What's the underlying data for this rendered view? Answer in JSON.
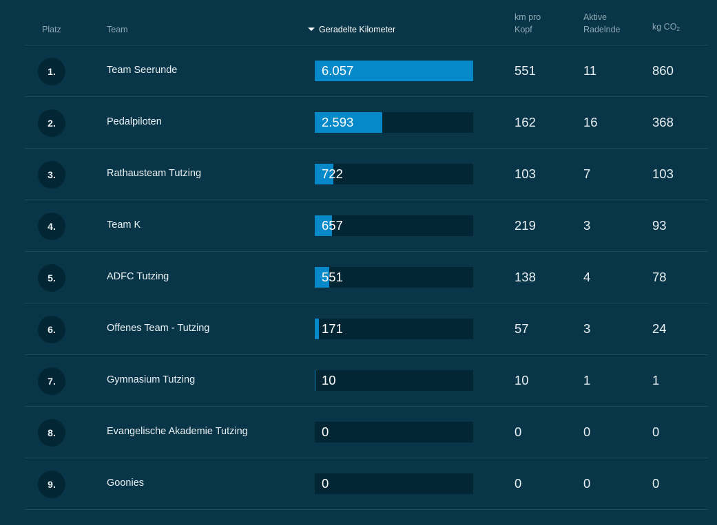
{
  "header": {
    "rank": "Platz",
    "team": "Team",
    "km": "Geradelte Kilometer",
    "km_per_head_line1": "km pro",
    "km_per_head_line2": "Kopf",
    "active_line1": "Aktive",
    "active_line2": "Radelnde",
    "co2_prefix": "kg CO",
    "co2_sub": "2",
    "sort_icon": "triangle-down"
  },
  "colors": {
    "background": "#083547",
    "bar_track": "#032634",
    "bar_fill": "#0589c9",
    "rank_circle": "#032634"
  },
  "rows": [
    {
      "rank": "1.",
      "team": "Team Seerunde",
      "km": "6.057",
      "km_value": 6057,
      "km_per_head": "551",
      "active": "11",
      "co2": "860"
    },
    {
      "rank": "2.",
      "team": "Pedalpiloten",
      "km": "2.593",
      "km_value": 2593,
      "km_per_head": "162",
      "active": "16",
      "co2": "368"
    },
    {
      "rank": "3.",
      "team": "Rathausteam Tutzing",
      "km": "722",
      "km_value": 722,
      "km_per_head": "103",
      "active": "7",
      "co2": "103"
    },
    {
      "rank": "4.",
      "team": "Team K",
      "km": "657",
      "km_value": 657,
      "km_per_head": "219",
      "active": "3",
      "co2": "93"
    },
    {
      "rank": "5.",
      "team": "ADFC Tutzing",
      "km": "551",
      "km_value": 551,
      "km_per_head": "138",
      "active": "4",
      "co2": "78"
    },
    {
      "rank": "6.",
      "team": "Offenes Team - Tutzing",
      "km": "171",
      "km_value": 171,
      "km_per_head": "57",
      "active": "3",
      "co2": "24"
    },
    {
      "rank": "7.",
      "team": "Gymnasium Tutzing",
      "km": "10",
      "km_value": 10,
      "km_per_head": "10",
      "active": "1",
      "co2": "1"
    },
    {
      "rank": "8.",
      "team": "Evangelische Akademie Tutzing",
      "km": "0",
      "km_value": 0,
      "km_per_head": "0",
      "active": "0",
      "co2": "0"
    },
    {
      "rank": "9.",
      "team": "Goonies",
      "km": "0",
      "km_value": 0,
      "km_per_head": "0",
      "active": "0",
      "co2": "0"
    }
  ]
}
